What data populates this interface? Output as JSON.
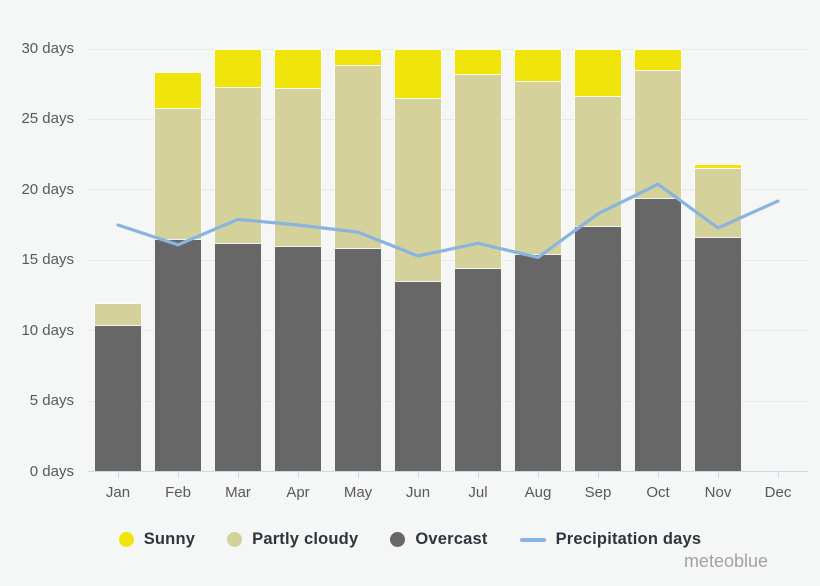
{
  "watermark": "meteoblue",
  "palette": {
    "background": "#f5f6f6",
    "grid": "#e9e9e9",
    "axis": "#ccd8ec",
    "axis_label_text": "#58595b",
    "legend_text": "#32343c",
    "watermark_text": "#a2a2a2"
  },
  "chart_data": {
    "type": "bar",
    "stacked": true,
    "title": "",
    "xlabel": "",
    "ylabel": "",
    "categories": [
      "Jan",
      "Feb",
      "Mar",
      "Apr",
      "May",
      "Jun",
      "Jul",
      "Aug",
      "Sep",
      "Oct",
      "Nov",
      "Dec"
    ],
    "ylim": [
      0,
      30
    ],
    "ytick_step": 5,
    "ytick_labels": [
      "0 days",
      "5 days",
      "10 days",
      "15 days",
      "20 days",
      "25 days",
      "30 days"
    ],
    "grid": true,
    "legend_position": "bottom",
    "series": [
      {
        "name": "Sunny",
        "type": "bar",
        "color": "#f1e40b",
        "values": [
          0,
          2.5,
          2.7,
          2.8,
          1.2,
          3.5,
          1.8,
          2.3,
          3.4,
          1.5,
          0.3,
          0
        ]
      },
      {
        "name": "Partly cloudy",
        "type": "bar",
        "color": "#d4d19a",
        "values": [
          1.5,
          9.3,
          11.1,
          11.2,
          13.0,
          13.0,
          13.8,
          12.3,
          9.2,
          9.1,
          4.9,
          0
        ]
      },
      {
        "name": "Overcast",
        "type": "bar",
        "color": "#676767",
        "values": [
          10.4,
          16.5,
          16.2,
          16.0,
          15.8,
          13.5,
          14.4,
          15.4,
          17.4,
          19.4,
          16.6,
          0
        ]
      },
      {
        "name": "Precipitation days",
        "type": "line",
        "color": "#8ab4e0",
        "values": [
          17.5,
          16.1,
          17.9,
          17.5,
          17.0,
          15.3,
          16.2,
          15.2,
          18.3,
          20.4,
          17.3,
          19.2
        ]
      }
    ]
  }
}
